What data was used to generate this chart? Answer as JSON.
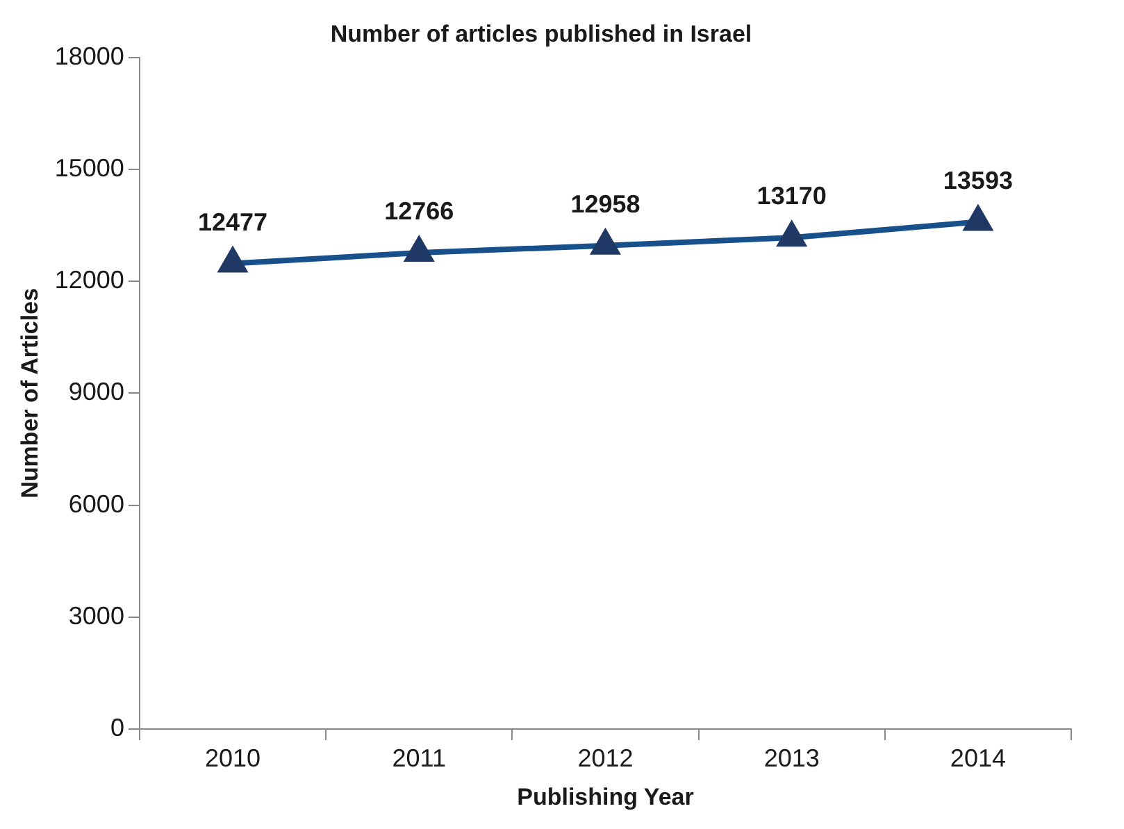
{
  "chart_data": {
    "type": "line",
    "title": "Number of articles published in Israel",
    "xlabel": "Publishing Year",
    "ylabel": "Number of Articles",
    "categories": [
      "2010",
      "2011",
      "2012",
      "2013",
      "2014"
    ],
    "series": [
      {
        "color": "#17508a",
        "values": [
          12477,
          12766,
          12958,
          13170,
          13593
        ]
      }
    ],
    "ylim": [
      0,
      18000
    ],
    "yticks": [
      0,
      3000,
      6000,
      9000,
      12000,
      15000,
      18000
    ],
    "grid": false,
    "legend": false,
    "marker": "triangle",
    "line_style": "solid",
    "data_labels": true
  }
}
